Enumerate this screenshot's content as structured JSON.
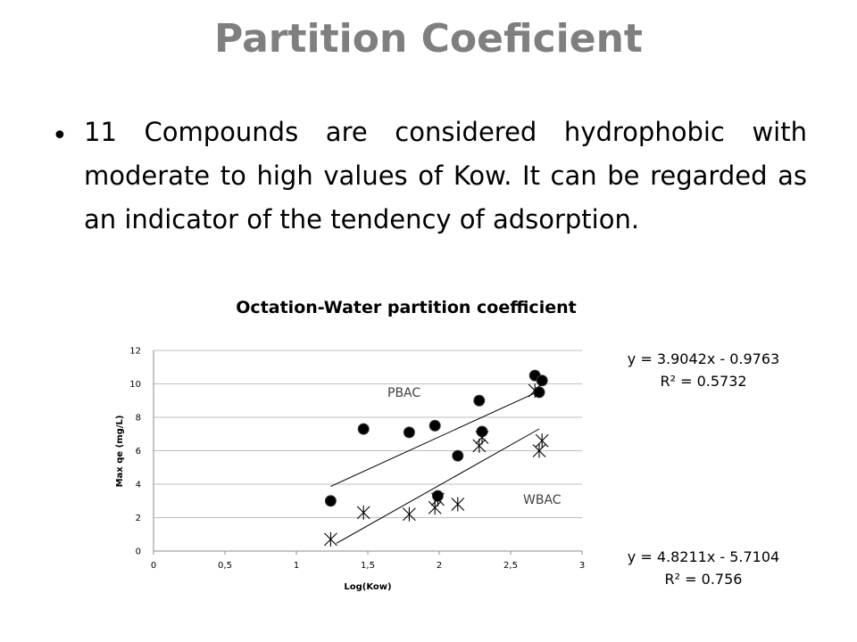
{
  "slide": {
    "title": "Partition Coeficient",
    "bullet": "11 Compounds are considered hydrophobic with moderate to high values of Kow. It can be regarded as an indicator of the tendency of adsorption."
  },
  "chart_data": {
    "type": "scatter",
    "title": "Octation-Water partition coefficient",
    "xlabel": "Log(Kow)",
    "ylabel": "Max qe (mg/L)",
    "xlim": [
      0,
      3
    ],
    "ylim": [
      0,
      12
    ],
    "x_ticks": [
      "0",
      "0,5",
      "1",
      "1,5",
      "2",
      "2,5",
      "3"
    ],
    "x_tick_values": [
      0,
      0.5,
      1,
      1.5,
      2,
      2.5,
      3
    ],
    "y_ticks": [
      "0",
      "2",
      "4",
      "6",
      "8",
      "10",
      "12"
    ],
    "y_tick_values": [
      0,
      2,
      4,
      6,
      8,
      10,
      12
    ],
    "grid": "horizontal",
    "colors": {
      "pbac": "#000000",
      "wbac": "#000000",
      "grid": "#bfbfbf"
    },
    "series": [
      {
        "name": "PBAC",
        "marker": "circle",
        "points": [
          [
            1.24,
            3.0
          ],
          [
            1.47,
            7.3
          ],
          [
            1.79,
            7.1
          ],
          [
            1.97,
            7.5
          ],
          [
            1.99,
            3.3
          ],
          [
            2.13,
            5.7
          ],
          [
            2.28,
            9.0
          ],
          [
            2.3,
            7.15
          ],
          [
            2.67,
            10.5
          ],
          [
            2.7,
            9.5
          ],
          [
            2.72,
            10.2
          ]
        ],
        "trend": {
          "slope": 3.9042,
          "intercept": -0.9763,
          "x_range": [
            1.24,
            2.72
          ]
        }
      },
      {
        "name": "WBAC",
        "marker": "star",
        "points": [
          [
            1.24,
            0.7
          ],
          [
            1.47,
            2.3
          ],
          [
            1.79,
            2.2
          ],
          [
            1.97,
            2.6
          ],
          [
            1.99,
            3.1
          ],
          [
            2.13,
            2.8
          ],
          [
            2.28,
            6.3
          ],
          [
            2.3,
            6.8
          ],
          [
            2.67,
            9.6
          ],
          [
            2.7,
            6.0
          ],
          [
            2.72,
            6.6
          ]
        ],
        "trend": {
          "slope": 4.8211,
          "intercept": -5.7104,
          "x_range": [
            1.28,
            2.7
          ]
        }
      }
    ],
    "annotations": [
      {
        "text": "y = 3.9042x - 0.9763"
      },
      {
        "text": "R² = 0.5732"
      },
      {
        "text": "y = 4.8211x - 5.7104"
      },
      {
        "text": "R² = 0.756"
      }
    ]
  }
}
